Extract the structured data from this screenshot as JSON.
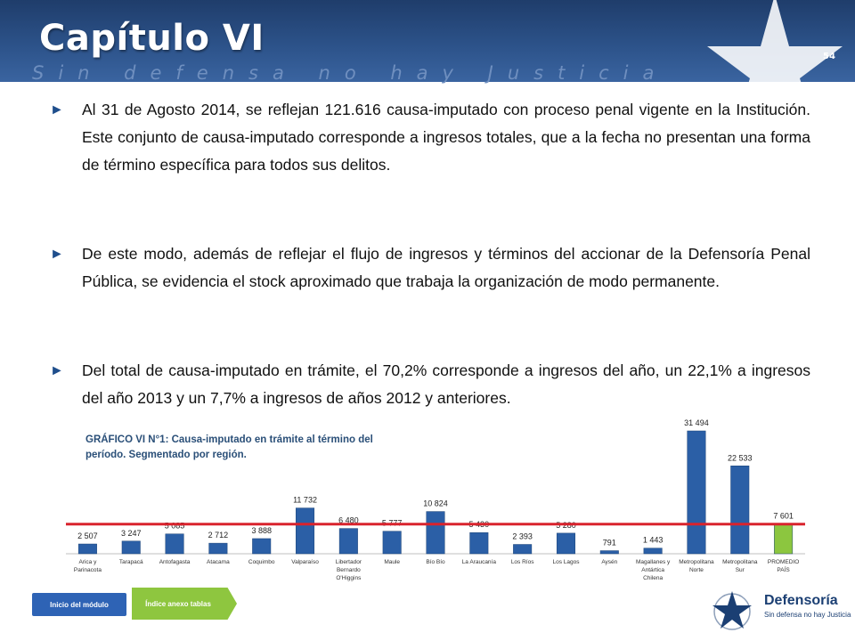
{
  "header": {
    "title": "Capítulo VI",
    "subtitle": "Sin defensa no hay Justicia",
    "page_number": "54"
  },
  "bullets": [
    "Al 31 de Agosto 2014, se reflejan 121.616 causa-imputado con proceso penal vigente en la Institución. Este conjunto de causa-imputado corresponde a ingresos totales, que a la fecha no presentan una forma de término específica para todos sus delitos.",
    "De este modo, además de reflejar el flujo de ingresos y términos del accionar de la Defensoría Penal Pública, se evidencia el stock aproximado que trabaja la organización de modo permanente.",
    "Del total de causa-imputado en trámite, el 70,2% corresponde a ingresos del año, un 22,1% a ingresos del año 2013 y un 7,7% a ingresos de años 2012 y anteriores."
  ],
  "chart_title": "GRÁFICO VI N°1: Causa-imputado en trámite al término del período. Segmentado por región.",
  "chart_data": {
    "type": "bar",
    "categories": [
      [
        "Arica y",
        "Parinacota"
      ],
      [
        "Tarapacá"
      ],
      [
        "Antofagasta"
      ],
      [
        "Atacama"
      ],
      [
        "Coquimbo"
      ],
      [
        "Valparaíso"
      ],
      [
        "Libertador",
        "Bernardo",
        "O'Higgins"
      ],
      [
        "Maule"
      ],
      [
        "Bío Bío"
      ],
      [
        "La Araucanía"
      ],
      [
        "Los Ríos"
      ],
      [
        "Los Lagos"
      ],
      [
        "Aysén"
      ],
      [
        "Magallanes y",
        "Antártica",
        "Chilena"
      ],
      [
        "Metropolitana",
        "Norte"
      ],
      [
        "Metropolitana",
        "Sur"
      ],
      [
        "PROMEDIO",
        "PAÍS"
      ]
    ],
    "values": [
      2507,
      3247,
      5085,
      2712,
      3888,
      11732,
      6480,
      5777,
      10824,
      5430,
      2393,
      5280,
      791,
      1443,
      31494,
      22533,
      7601
    ],
    "value_labels": [
      "2 507",
      "3 247",
      "5 085",
      "2 712",
      "3 888",
      "11 732",
      "6 480",
      "5 777",
      "10 824",
      "5 430",
      "2 393",
      "5 280",
      "791",
      "1 443",
      "31 494",
      "22 533",
      "7 601"
    ],
    "reference_line": 7601,
    "colors": {
      "bar": "#2b5fa6",
      "highlight_bar": "#8cc63f",
      "reference_line": "#d9232d"
    },
    "highlight_index": 16
  },
  "nav": {
    "inicio_label": "Inicio del módulo",
    "indice_label": "Índice anexo tablas"
  },
  "logo": {
    "name": "Defensoría",
    "tagline": "Sin defensa no hay Justicia"
  }
}
